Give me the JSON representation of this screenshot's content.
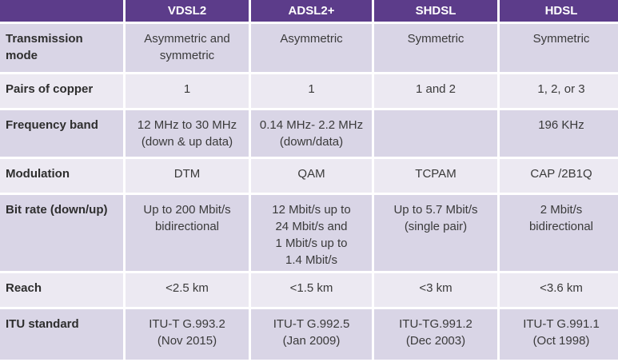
{
  "header": {
    "corner": "",
    "columns": [
      "VDSL2",
      "ADSL2+",
      "SHDSL",
      "HDSL"
    ]
  },
  "rows": [
    {
      "label": "Transmission\nmode",
      "cells": [
        "Asymmetric and\nsymmetric",
        "Asymmetric",
        "Symmetric",
        "Symmetric"
      ]
    },
    {
      "label": "Pairs of copper",
      "cells": [
        "1",
        "1",
        "1 and 2",
        "1, 2, or 3"
      ]
    },
    {
      "label": "Frequency band",
      "cells": [
        "12 MHz to 30 MHz\n(down & up data)",
        "0.14 MHz- 2.2 MHz\n(down/data)",
        "",
        "196 KHz"
      ]
    },
    {
      "label": "Modulation",
      "cells": [
        "DTM",
        "QAM",
        "TCPAM",
        "CAP /2B1Q"
      ]
    },
    {
      "label": "Bit rate (down/up)",
      "cells": [
        "Up to 200 Mbit/s\nbidirectional",
        "12 Mbit/s up to\n24 Mbit/s and\n1 Mbit/s up to\n1.4 Mbit/s",
        "Up to 5.7 Mbit/s\n(single pair)",
        "2 Mbit/s\nbidirectional"
      ]
    },
    {
      "label": "Reach",
      "cells": [
        "<2.5 km",
        "<1.5 km",
        "<3 km",
        "<3.6 km"
      ]
    },
    {
      "label": "ITU standard",
      "cells": [
        "ITU-T G.993.2\n(Nov 2015)",
        "ITU-T G.992.5\n(Jan 2009)",
        "ITU-TG.991.2\n(Dec 2003)",
        "ITU-T G.991.1\n(Oct 1998)"
      ]
    }
  ],
  "colors": {
    "header_bg": "#5c3c8a",
    "row_dark": "#d9d5e6",
    "row_light": "#ece9f2"
  }
}
